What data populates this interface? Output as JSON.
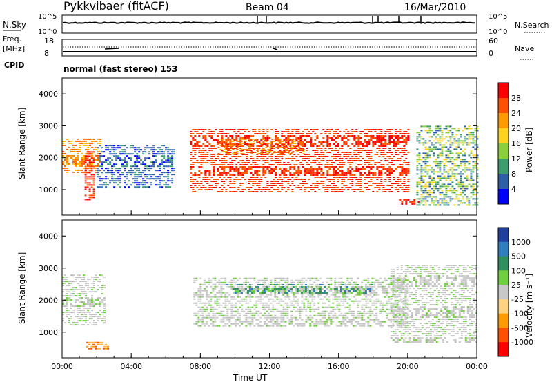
{
  "header": {
    "title": "Pykkvibaer (fitACF)",
    "beam": "Beam 04",
    "date": "16/Mar/2010"
  },
  "sky_panel": {
    "left_label": "N.Sky",
    "left_ticks": [
      "10^5",
      "10^0"
    ],
    "right_ticks": [
      "10^5",
      "10^0"
    ],
    "right_label": "N.Search"
  },
  "freq_panel": {
    "left_label_line1": "Freq.",
    "left_label_line2": "[MHz]",
    "left_ticks": [
      "18",
      "8"
    ],
    "right_ticks": [
      "60",
      "0"
    ],
    "right_label": "Nave",
    "cpid_label": "CPID",
    "cpid_text": "normal (fast stereo) 153"
  },
  "chart_data": [
    {
      "type": "heatmap",
      "name": "power",
      "ylabel": "Slant Range [km]",
      "yticks": [
        "4000",
        "3000",
        "2000",
        "1000"
      ],
      "ylim": [
        200,
        4500
      ],
      "colorbar": {
        "label": "Power [dB]",
        "ticks": [
          "28",
          "24",
          "20",
          "16",
          "12",
          "8",
          "4"
        ],
        "colors": [
          "#ff0000",
          "#ff5000",
          "#ff9b00",
          "#ffd21e",
          "#8ccf3c",
          "#3c9d6e",
          "#2d5fa8",
          "#0000ff"
        ]
      },
      "regions": [
        {
          "t": [
            0.0,
            2.2
          ],
          "r": [
            1500,
            2600
          ],
          "level": "orange"
        },
        {
          "t": [
            1.3,
            1.8
          ],
          "r": [
            700,
            2200
          ],
          "level": "red"
        },
        {
          "t": [
            2.0,
            6.5
          ],
          "r": [
            1100,
            2400
          ],
          "level": "blue"
        },
        {
          "t": [
            7.4,
            20.0
          ],
          "r": [
            900,
            2900
          ],
          "level": "red"
        },
        {
          "t": [
            9.0,
            14.0
          ],
          "r": [
            2100,
            2600
          ],
          "level": "orange"
        },
        {
          "t": [
            19.5,
            20.6
          ],
          "r": [
            550,
            700
          ],
          "level": "red"
        },
        {
          "t": [
            20.5,
            24.0
          ],
          "r": [
            500,
            3000
          ],
          "level": "green"
        }
      ]
    },
    {
      "type": "heatmap",
      "name": "velocity",
      "xlabel": "Time UT",
      "xticks": [
        "00:00",
        "04:00",
        "08:00",
        "12:00",
        "16:00",
        "20:00",
        "00:00"
      ],
      "ylabel": "Slant Range [km]",
      "yticks": [
        "4000",
        "3000",
        "2000",
        "1000"
      ],
      "ylim": [
        200,
        4500
      ],
      "colorbar": {
        "label": "Velocity [m s⁻¹]",
        "ticks": [
          "1000",
          "500",
          "100",
          "25",
          "-25",
          "-100",
          "-500",
          "-1000"
        ],
        "colors": [
          "#1f3f9f",
          "#2f7fbf",
          "#2f8f5f",
          "#6fcf3f",
          "#c8c8c8",
          "#ffd27f",
          "#ff9b00",
          "#ff5000",
          "#ff0000"
        ]
      },
      "regions": [
        {
          "t": [
            0.0,
            2.5
          ],
          "r": [
            1200,
            2800
          ],
          "level": "grey"
        },
        {
          "t": [
            1.4,
            2.6
          ],
          "r": [
            500,
            700
          ],
          "level": "orange"
        },
        {
          "t": [
            7.6,
            20.0
          ],
          "r": [
            1200,
            2700
          ],
          "level": "grey"
        },
        {
          "t": [
            9.5,
            18.0
          ],
          "r": [
            2200,
            2500
          ],
          "level": "green"
        },
        {
          "t": [
            19.0,
            24.0
          ],
          "r": [
            700,
            3100
          ],
          "level": "grey"
        }
      ]
    }
  ]
}
